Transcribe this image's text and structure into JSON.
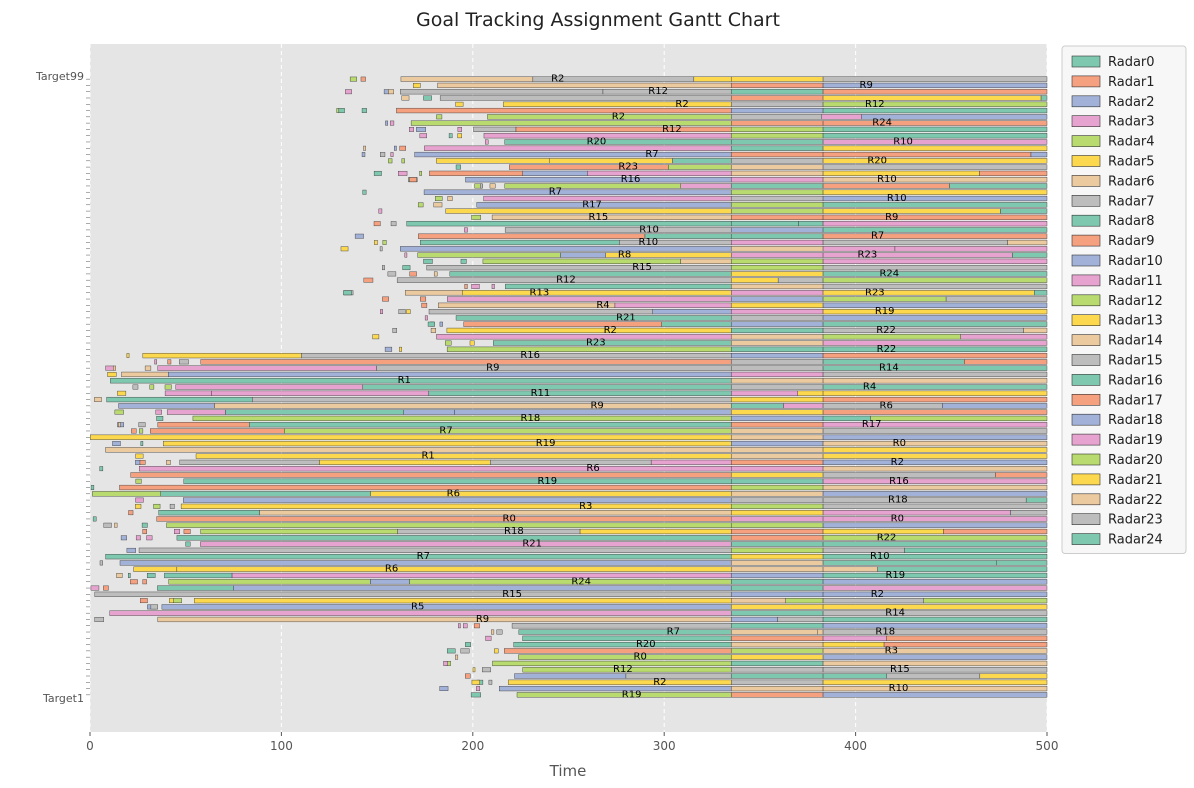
{
  "chart_data": {
    "type": "bar",
    "orientation": "horizontal",
    "title": "Goal Tracking Assignment Gantt Chart",
    "xlabel": "Time",
    "ylabel": "",
    "xlim": [
      0,
      500
    ],
    "xticks": [
      0,
      100,
      200,
      300,
      400,
      500
    ],
    "grid": true,
    "legend_placement": "outside-right",
    "colors": {
      "Radar0": "#7fc8b0",
      "Radar1": "#f5a07f",
      "Radar2": "#a2b1d8",
      "Radar3": "#e7a3cf",
      "Radar4": "#b8da6e",
      "Radar5": "#fcd84f",
      "Radar6": "#eccaa0",
      "Radar7": "#bdbdbd",
      "Radar8": "#7fc8b0",
      "Radar9": "#f5a07f",
      "Radar10": "#a2b1d8",
      "Radar11": "#e7a3cf",
      "Radar12": "#b8da6e",
      "Radar13": "#fcd84f",
      "Radar14": "#eccaa0",
      "Radar15": "#bdbdbd",
      "Radar16": "#7fc8b0",
      "Radar17": "#f5a07f",
      "Radar18": "#a2b1d8",
      "Radar19": "#e7a3cf",
      "Radar20": "#b8da6e",
      "Radar21": "#fcd84f",
      "Radar22": "#eccaa0",
      "Radar23": "#bdbdbd",
      "Radar24": "#7fc8b0"
    },
    "legend": [
      "Radar0",
      "Radar1",
      "Radar2",
      "Radar3",
      "Radar4",
      "Radar5",
      "Radar6",
      "Radar7",
      "Radar8",
      "Radar9",
      "Radar10",
      "Radar11",
      "Radar12",
      "Radar13",
      "Radar14",
      "Radar15",
      "Radar16",
      "Radar17",
      "Radar18",
      "Radar19",
      "Radar20",
      "Radar21",
      "Radar22",
      "Radar23",
      "Radar24"
    ],
    "y_categories_visible": [
      "Target1",
      "Target99"
    ],
    "target_count": 99,
    "segments_sample": [
      {
        "target": "Target1",
        "radar": "Radar3",
        "start": 225,
        "end": 335
      },
      {
        "target": "Target1",
        "radar": "Radar11",
        "start": 230,
        "end": 335
      },
      {
        "target": "Target1",
        "radar": "Radar17",
        "start": 240,
        "end": 335
      },
      {
        "target": "Target1",
        "radar": "Radar24",
        "start": 335,
        "end": 500
      },
      {
        "target": "Target1",
        "radar": "Radar8",
        "start": 335,
        "end": 500
      },
      {
        "target": "Target30",
        "radar": "Radar15",
        "start": 40,
        "end": 500
      },
      {
        "target": "Target45",
        "radar": "Radar20",
        "start": 0,
        "end": 500
      },
      {
        "target": "Target60",
        "radar": "Radar10",
        "start": 0,
        "end": 500
      },
      {
        "target": "Target70",
        "radar": "Radar12",
        "start": 60,
        "end": 500
      },
      {
        "target": "Target80",
        "radar": "Radar14",
        "start": 170,
        "end": 500
      },
      {
        "target": "Target90",
        "radar": "Radar9",
        "start": 180,
        "end": 500
      },
      {
        "target": "Target99",
        "radar": "Radar19",
        "start": 200,
        "end": 500
      }
    ],
    "annotations": [
      "R0",
      "R1",
      "R2",
      "R3",
      "R4",
      "R5",
      "R6",
      "R7",
      "R8",
      "R9",
      "R10",
      "R11",
      "R12",
      "R13",
      "R14",
      "R15",
      "R16",
      "R17",
      "R18",
      "R19",
      "R20",
      "R21",
      "R22",
      "R23",
      "R24"
    ]
  }
}
